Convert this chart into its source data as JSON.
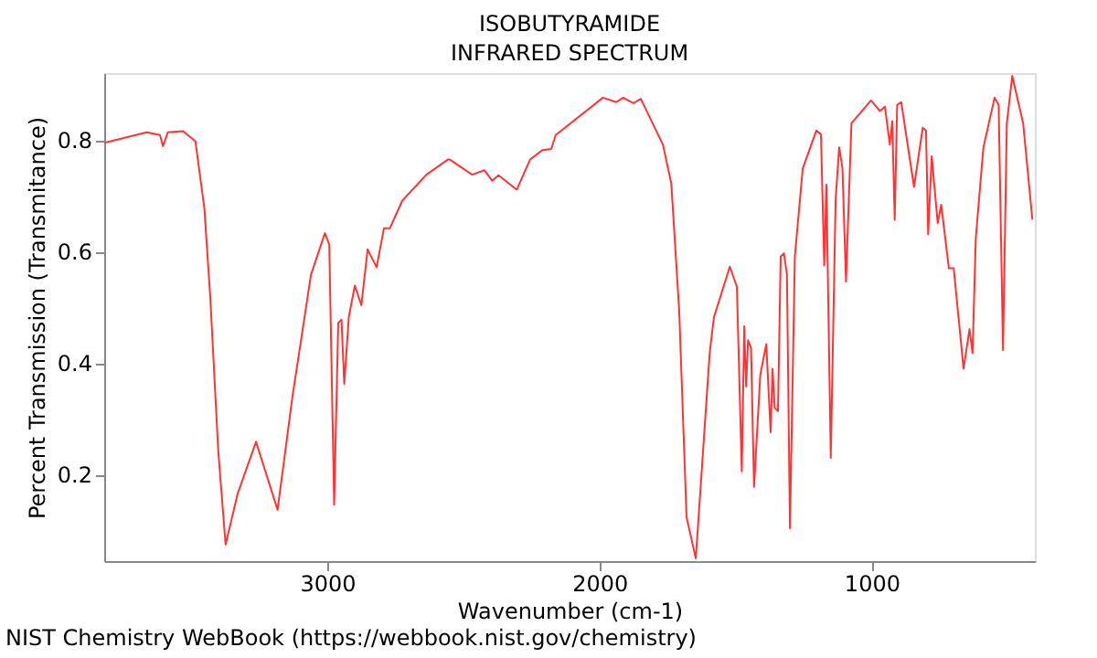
{
  "chart_data": {
    "type": "line",
    "title": "ISOBUTYRAMIDE",
    "subtitle": "INFRARED SPECTRUM",
    "xlabel": "Wavenumber (cm-1)",
    "ylabel": "Percent Transmission (Transmitance)",
    "annotations": [
      "NIST Chemistry WebBook (https://webbook.nist.gov/chemistry)"
    ],
    "xlim": [
      3820,
      400
    ],
    "xticks": [
      3000,
      2000,
      1000
    ],
    "ylim": [
      0.045,
      0.92
    ],
    "yticks": [
      0.2,
      0.4,
      0.6,
      0.8
    ],
    "grid": false,
    "marker": "none",
    "line_style": "solid",
    "series": [
      {
        "color": "#ff3333",
        "x": [
          3819,
          3664,
          3615,
          3604,
          3586,
          3530,
          3485,
          3452,
          3430,
          3401,
          3374,
          3329,
          3262,
          3183,
          3128,
          3060,
          3009,
          2993,
          2975,
          2960,
          2948,
          2938,
          2921,
          2899,
          2875,
          2852,
          2819,
          2792,
          2770,
          2725,
          2636,
          2557,
          2550,
          2468,
          2423,
          2394,
          2371,
          2304,
          2255,
          2210,
          2177,
          2161,
          1987,
          1938,
          1913,
          1875,
          1848,
          1767,
          1736,
          1707,
          1680,
          1646,
          1595,
          1579,
          1521,
          1495,
          1477,
          1468,
          1461,
          1454,
          1443,
          1432,
          1409,
          1387,
          1371,
          1364,
          1356,
          1344,
          1334,
          1322,
          1311,
          1300,
          1282,
          1253,
          1203,
          1186,
          1174,
          1166,
          1150,
          1132,
          1119,
          1107,
          1094,
          1074,
          1002,
          969,
          951,
          933,
          924,
          915,
          906,
          891,
          844,
          812,
          800,
          792,
          779,
          757,
          744,
          716,
          698,
          662,
          640,
          629,
          617,
          589,
          548,
          533,
          517,
          503,
          483,
          443,
          409
        ],
        "values": [
          0.795,
          0.814,
          0.809,
          0.789,
          0.814,
          0.816,
          0.798,
          0.678,
          0.516,
          0.243,
          0.075,
          0.167,
          0.259,
          0.137,
          0.341,
          0.559,
          0.633,
          0.613,
          0.146,
          0.472,
          0.478,
          0.363,
          0.483,
          0.539,
          0.504,
          0.604,
          0.572,
          0.642,
          0.642,
          0.691,
          0.738,
          0.765,
          0.765,
          0.738,
          0.746,
          0.727,
          0.737,
          0.711,
          0.765,
          0.782,
          0.784,
          0.809,
          0.876,
          0.868,
          0.876,
          0.866,
          0.874,
          0.792,
          0.722,
          0.494,
          0.124,
          0.05,
          0.418,
          0.483,
          0.573,
          0.537,
          0.206,
          0.466,
          0.358,
          0.441,
          0.428,
          0.178,
          0.379,
          0.434,
          0.276,
          0.39,
          0.32,
          0.314,
          0.591,
          0.597,
          0.559,
          0.104,
          0.591,
          0.749,
          0.817,
          0.81,
          0.575,
          0.72,
          0.23,
          0.695,
          0.787,
          0.749,
          0.546,
          0.83,
          0.871,
          0.852,
          0.86,
          0.792,
          0.834,
          0.657,
          0.863,
          0.868,
          0.716,
          0.822,
          0.817,
          0.631,
          0.771,
          0.651,
          0.684,
          0.57,
          0.57,
          0.39,
          0.461,
          0.418,
          0.624,
          0.787,
          0.876,
          0.863,
          0.423,
          0.83,
          0.915,
          0.83,
          0.657
        ]
      }
    ]
  }
}
